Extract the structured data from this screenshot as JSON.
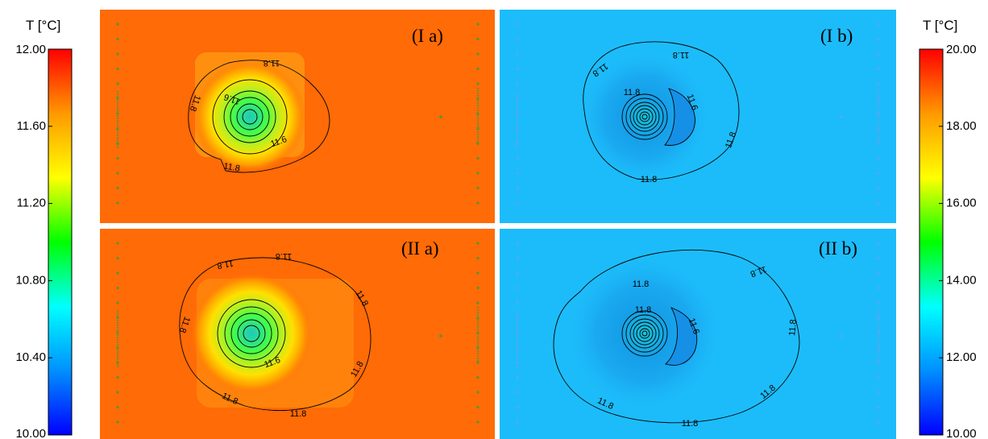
{
  "chart_data": [
    {
      "type": "heatmap",
      "panel_label": "(I a)",
      "colorbar": "left",
      "background_color": "#ff6b06",
      "wells": {
        "left_line": true,
        "right_line": true,
        "single_point": true
      },
      "plume": {
        "core_color": "#1fc8bf",
        "peak_color": "#46ff46"
      },
      "contour_labels": [
        "11.8",
        "11.8",
        "11.6",
        "11.6",
        "11.8"
      ]
    },
    {
      "type": "heatmap",
      "panel_label": "(I b)",
      "colorbar": "right",
      "background_color": "#1cbcfa",
      "wells": {
        "left_line": true,
        "right_line": true,
        "single_point": true
      },
      "contour_labels": [
        "11.8",
        "11.8",
        "11.6",
        "11.8",
        "11.8"
      ]
    },
    {
      "type": "heatmap",
      "panel_label": "(II a)",
      "colorbar": "left",
      "background_color": "#ff6b06",
      "wells": {
        "left_line": true,
        "right_line": true,
        "single_point": true
      },
      "plume": {
        "core_color": "#1fc8bf",
        "peak_color": "#46ff46"
      },
      "contour_labels": [
        "11.8",
        "11.8",
        "11.8",
        "11.8",
        "11.6",
        "11.8",
        "11.8",
        "11.8"
      ]
    },
    {
      "type": "heatmap",
      "panel_label": "(II b)",
      "colorbar": "right",
      "background_color": "#1cbcfa",
      "wells": {
        "left_line": true,
        "right_line": true,
        "single_point": true
      },
      "contour_labels": [
        "11.8",
        "11.8",
        "11.8",
        "11.6",
        "11.8",
        "11.8",
        "11.8",
        "11.8"
      ]
    }
  ],
  "colorbars": {
    "left": {
      "title": "T [°C]",
      "range": [
        10.0,
        12.0
      ],
      "ticks": [
        "12.00",
        "11.60",
        "11.20",
        "10.80",
        "10.40",
        "10.00"
      ]
    },
    "right": {
      "title": "T [°C]",
      "range": [
        10.0,
        20.0
      ],
      "ticks": [
        "20.00",
        "18.00",
        "16.00",
        "14.00",
        "12.00",
        "10.00"
      ]
    }
  },
  "colors": {
    "scale": [
      "#0000ff",
      "#0090ff",
      "#00ffff",
      "#00ff00",
      "#ffff00",
      "#ff9900",
      "#ff0000"
    ],
    "well_points": "#4a9a3a",
    "contour": "#000000"
  }
}
